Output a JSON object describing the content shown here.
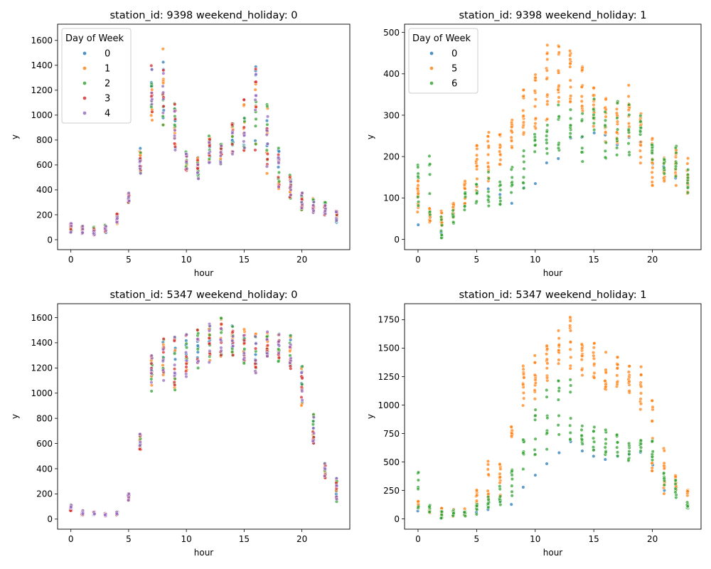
{
  "palette": {
    "0": "#1f77b4",
    "1": "#ff7f0e",
    "2": "#2ca02c",
    "3": "#d62728",
    "4": "#9467bd",
    "5": "#ff7f0e",
    "6": "#2ca02c"
  },
  "chart_data": [
    {
      "type": "scatter",
      "title": "station_id: 9398 weekend_holiday: 0",
      "xlabel": "hour",
      "ylabel": "y",
      "xlim": [
        -1.15,
        24.15
      ],
      "ylim": [
        -80,
        1730
      ],
      "xticks": [
        0,
        5,
        10,
        15,
        20
      ],
      "yticks": [
        0,
        200,
        400,
        600,
        800,
        1000,
        1200,
        1400,
        1600
      ],
      "legend": {
        "title": "Day of Week",
        "placement": "upper-left",
        "entries": [
          "0",
          "1",
          "2",
          "3",
          "4"
        ]
      },
      "profile": {
        "0": [
          [
            50,
            140
          ],
          [
            40,
            120
          ],
          [
            30,
            110
          ],
          [
            50,
            120
          ],
          [
            120,
            220
          ],
          [
            290,
            390
          ],
          [
            500,
            760
          ],
          [
            880,
            1440
          ],
          [
            860,
            1650
          ],
          [
            680,
            1140
          ],
          [
            540,
            720
          ],
          [
            460,
            680
          ],
          [
            560,
            860
          ],
          [
            600,
            780
          ],
          [
            620,
            960
          ],
          [
            680,
            1200
          ],
          [
            640,
            1450
          ],
          [
            460,
            1160
          ],
          [
            380,
            770
          ],
          [
            310,
            550
          ],
          [
            220,
            390
          ],
          [
            200,
            340
          ],
          [
            180,
            310
          ],
          [
            130,
            240
          ]
        ]
      },
      "series": [
        {
          "name": "0",
          "color": "#1f77b4",
          "n": 5,
          "seed": 11,
          "shift": 0.0
        },
        {
          "name": "1",
          "color": "#ff7f0e",
          "n": 5,
          "seed": 23,
          "shift": 0.03
        },
        {
          "name": "2",
          "color": "#2ca02c",
          "n": 5,
          "seed": 37,
          "shift": 0.05
        },
        {
          "name": "3",
          "color": "#d62728",
          "n": 5,
          "seed": 41,
          "shift": 0.0
        },
        {
          "name": "4",
          "color": "#9467bd",
          "n": 5,
          "seed": 53,
          "shift": -0.05
        }
      ]
    },
    {
      "type": "scatter",
      "title": "station_id: 9398 weekend_holiday: 1",
      "xlabel": "hour",
      "ylabel": "y",
      "xlim": [
        -1.15,
        24.15
      ],
      "ylim": [
        -25,
        520
      ],
      "xticks": [
        0,
        5,
        10,
        15,
        20
      ],
      "yticks": [
        0,
        100,
        200,
        300,
        400,
        500
      ],
      "legend": {
        "title": "Day of Week",
        "placement": "upper-left",
        "entries": [
          "0",
          "5",
          "6"
        ]
      },
      "series": [
        {
          "name": "0",
          "color": "#1f77b4",
          "n": 1,
          "seed": 61,
          "ranges": [
            [
              35,
              35
            ],
            [
              35,
              55
            ],
            [
              15,
              40
            ],
            [
              45,
              70
            ],
            [
              70,
              110
            ],
            [
              90,
              140
            ],
            [
              100,
              130
            ],
            [
              75,
              120
            ],
            [
              70,
              90
            ],
            [
              120,
              130
            ],
            [
              130,
              135
            ],
            [
              180,
              185
            ],
            [
              195,
              205
            ],
            [
              240,
              245
            ],
            [
              240,
              250
            ],
            [
              250,
              260
            ],
            [
              250,
              260
            ],
            [
              220,
              230
            ],
            [
              240,
              250
            ],
            [
              230,
              240
            ],
            [
              180,
              190
            ],
            [
              170,
              180
            ],
            [
              140,
              150
            ],
            [
              130,
              140
            ]
          ]
        },
        {
          "name": "5",
          "color": "#ff7f0e",
          "n": 14,
          "seed": 71,
          "ranges": [
            [
              60,
              145
            ],
            [
              40,
              80
            ],
            [
              25,
              75
            ],
            [
              45,
              90
            ],
            [
              80,
              150
            ],
            [
              110,
              240
            ],
            [
              140,
              260
            ],
            [
              170,
              280
            ],
            [
              210,
              300
            ],
            [
              240,
              370
            ],
            [
              260,
              400
            ],
            [
              280,
              480
            ],
            [
              310,
              495
            ],
            [
              330,
              460
            ],
            [
              300,
              440
            ],
            [
              270,
              370
            ],
            [
              230,
              350
            ],
            [
              220,
              330
            ],
            [
              230,
              385
            ],
            [
              180,
              320
            ],
            [
              130,
              245
            ],
            [
              130,
              205
            ],
            [
              125,
              220
            ],
            [
              110,
              200
            ]
          ]
        },
        {
          "name": "6",
          "color": "#2ca02c",
          "n": 8,
          "seed": 83,
          "ranges": [
            [
              70,
              225
            ],
            [
              30,
              210
            ],
            [
              0,
              55
            ],
            [
              35,
              85
            ],
            [
              60,
              120
            ],
            [
              80,
              150
            ],
            [
              80,
              170
            ],
            [
              75,
              150
            ],
            [
              100,
              190
            ],
            [
              120,
              225
            ],
            [
              180,
              275
            ],
            [
              195,
              290
            ],
            [
              200,
              330
            ],
            [
              240,
              340
            ],
            [
              170,
              320
            ],
            [
              260,
              340
            ],
            [
              170,
              320
            ],
            [
              200,
              345
            ],
            [
              200,
              335
            ],
            [
              225,
              305
            ],
            [
              175,
              230
            ],
            [
              150,
              210
            ],
            [
              140,
              230
            ],
            [
              95,
              170
            ]
          ]
        }
      ]
    },
    {
      "type": "scatter",
      "title": "station_id: 5347 weekend_holiday: 0",
      "xlabel": "hour",
      "ylabel": "y",
      "xlim": [
        -1.15,
        24.15
      ],
      "ylim": [
        -80,
        1710
      ],
      "xticks": [
        0,
        5,
        10,
        15,
        20
      ],
      "yticks": [
        0,
        200,
        400,
        600,
        800,
        1000,
        1200,
        1400,
        1600
      ],
      "legend": null,
      "profile": {
        "0": [
          [
            60,
            120
          ],
          [
            30,
            70
          ],
          [
            30,
            60
          ],
          [
            20,
            50
          ],
          [
            30,
            60
          ],
          [
            140,
            210
          ],
          [
            520,
            690
          ],
          [
            990,
            1350
          ],
          [
            1050,
            1490
          ],
          [
            990,
            1480
          ],
          [
            1100,
            1510
          ],
          [
            1170,
            1540
          ],
          [
            1200,
            1590
          ],
          [
            1260,
            1630
          ],
          [
            1270,
            1560
          ],
          [
            1210,
            1550
          ],
          [
            1130,
            1500
          ],
          [
            1270,
            1510
          ],
          [
            1230,
            1500
          ],
          [
            1170,
            1490
          ],
          [
            870,
            1250
          ],
          [
            580,
            870
          ],
          [
            290,
            460
          ],
          [
            120,
            380
          ]
        ]
      },
      "series": [
        {
          "name": "0",
          "color": "#1f77b4",
          "n": 5,
          "seed": 101,
          "shift": 0.0
        },
        {
          "name": "1",
          "color": "#ff7f0e",
          "n": 5,
          "seed": 113,
          "shift": 0.02
        },
        {
          "name": "2",
          "color": "#2ca02c",
          "n": 5,
          "seed": 127,
          "shift": 0.0
        },
        {
          "name": "3",
          "color": "#d62728",
          "n": 5,
          "seed": 131,
          "shift": 0.0
        },
        {
          "name": "4",
          "color": "#9467bd",
          "n": 5,
          "seed": 149,
          "shift": 0.03
        }
      ]
    },
    {
      "type": "scatter",
      "title": "station_id: 5347 weekend_holiday: 1",
      "xlabel": "hour",
      "ylabel": "y",
      "xlim": [
        -1.15,
        24.15
      ],
      "ylim": [
        -90,
        1890
      ],
      "xticks": [
        0,
        5,
        10,
        15,
        20
      ],
      "yticks": [
        0,
        250,
        500,
        750,
        1000,
        1250,
        1500,
        1750
      ],
      "legend": null,
      "series": [
        {
          "name": "0",
          "color": "#1f77b4",
          "n": 1,
          "seed": 161,
          "ranges": [
            [
              70,
              70
            ],
            [
              30,
              70
            ],
            [
              20,
              60
            ],
            [
              20,
              50
            ],
            [
              20,
              40
            ],
            [
              40,
              60
            ],
            [
              80,
              120
            ],
            [
              100,
              160
            ],
            [
              120,
              130
            ],
            [
              270,
              280
            ],
            [
              380,
              390
            ],
            [
              480,
              490
            ],
            [
              580,
              590
            ],
            [
              670,
              680
            ],
            [
              590,
              600
            ],
            [
              550,
              560
            ],
            [
              520,
              530
            ],
            [
              540,
              550
            ],
            [
              560,
              570
            ],
            [
              580,
              590
            ],
            [
              470,
              480
            ],
            [
              250,
              260
            ],
            [
              270,
              280
            ],
            [
              110,
              120
            ]
          ]
        },
        {
          "name": "5",
          "color": "#ff7f0e",
          "n": 12,
          "seed": 171,
          "ranges": [
            [
              90,
              160
            ],
            [
              50,
              110
            ],
            [
              30,
              100
            ],
            [
              20,
              90
            ],
            [
              30,
              90
            ],
            [
              90,
              260
            ],
            [
              170,
              510
            ],
            [
              190,
              500
            ],
            [
              700,
              820
            ],
            [
              980,
              1420
            ],
            [
              950,
              1460
            ],
            [
              1140,
              1580
            ],
            [
              1350,
              1660
            ],
            [
              1320,
              1800
            ],
            [
              1220,
              1560
            ],
            [
              1200,
              1570
            ],
            [
              1080,
              1500
            ],
            [
              1150,
              1490
            ],
            [
              1050,
              1380
            ],
            [
              950,
              1340
            ],
            [
              370,
              1100
            ],
            [
              200,
              720
            ],
            [
              250,
              380
            ],
            [
              200,
              260
            ]
          ]
        },
        {
          "name": "6",
          "color": "#2ca02c",
          "n": 8,
          "seed": 183,
          "ranges": [
            [
              90,
              410
            ],
            [
              60,
              120
            ],
            [
              0,
              100
            ],
            [
              20,
              80
            ],
            [
              10,
              70
            ],
            [
              30,
              130
            ],
            [
              100,
              240
            ],
            [
              120,
              300
            ],
            [
              200,
              440
            ],
            [
              420,
              700
            ],
            [
              560,
              960
            ],
            [
              600,
              1140
            ],
            [
              700,
              1380
            ],
            [
              620,
              1330
            ],
            [
              590,
              850
            ],
            [
              430,
              830
            ],
            [
              480,
              810
            ],
            [
              550,
              810
            ],
            [
              490,
              760
            ],
            [
              500,
              710
            ],
            [
              480,
              700
            ],
            [
              280,
              410
            ],
            [
              160,
              350
            ],
            [
              90,
              160
            ]
          ]
        }
      ]
    }
  ]
}
